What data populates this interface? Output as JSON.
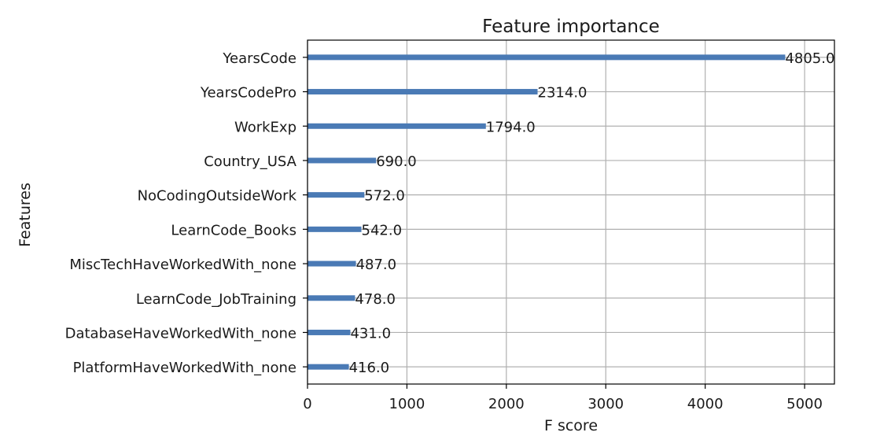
{
  "chart_data": {
    "type": "bar",
    "orientation": "horizontal",
    "title": "Feature importance",
    "xlabel": "F score",
    "ylabel": "Features",
    "xlim": [
      0,
      5300
    ],
    "xticks": [
      0,
      1000,
      2000,
      3000,
      4000,
      5000
    ],
    "grid": true,
    "legend": "none",
    "bar_color": "#4a7ab5",
    "categories": [
      "YearsCode",
      "YearsCodePro",
      "WorkExp",
      "Country_USA",
      "NoCodingOutsideWork",
      "LearnCode_Books",
      "MiscTechHaveWorkedWith_none",
      "LearnCode_JobTraining",
      "DatabaseHaveWorkedWith_none",
      "PlatformHaveWorkedWith_none"
    ],
    "values": [
      4805,
      2314,
      1794,
      690,
      572,
      542,
      487,
      478,
      431,
      416
    ],
    "data_labels": [
      "4805.0",
      "2314.0",
      "1794.0",
      "690.0",
      "572.0",
      "542.0",
      "487.0",
      "478.0",
      "431.0",
      "416.0"
    ]
  }
}
